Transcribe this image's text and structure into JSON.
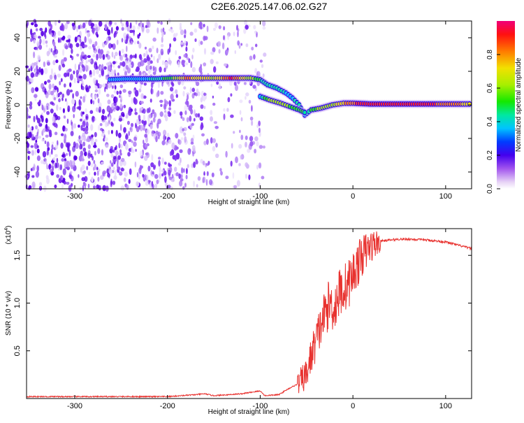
{
  "title": "C2E6.2025.147.06.02.G27",
  "chart_data": [
    {
      "type": "heatmap",
      "xlabel": "Height of straight line (km)",
      "ylabel": "Frequency (Hz)",
      "xlim": [
        -352,
        128
      ],
      "ylim": [
        -50,
        50
      ],
      "xticks": [
        -300,
        -200,
        -100,
        0,
        100
      ],
      "yticks": [
        -40,
        -20,
        0,
        20,
        40
      ],
      "colorbar": {
        "label": "Normalized spectral amplitude",
        "range": [
          0.0,
          1.0
        ],
        "ticks": [
          0.0,
          0.2,
          0.4,
          0.6,
          0.8
        ]
      },
      "noise_region": {
        "x_range": [
          -352,
          -95
        ],
        "y_range": [
          -50,
          50
        ]
      },
      "trace": [
        {
          "x": -262,
          "y": 15,
          "amp": 0.35
        },
        {
          "x": -245,
          "y": 15.5,
          "amp": 0.3
        },
        {
          "x": -230,
          "y": 15.5,
          "amp": 0.3
        },
        {
          "x": -212,
          "y": 15.5,
          "amp": 0.4
        },
        {
          "x": -195,
          "y": 16,
          "amp": 0.5
        },
        {
          "x": -180,
          "y": 16,
          "amp": 0.75
        },
        {
          "x": -150,
          "y": 16,
          "amp": 0.6
        },
        {
          "x": -130,
          "y": 16,
          "amp": 0.85
        },
        {
          "x": -110,
          "y": 16,
          "amp": 0.55
        },
        {
          "x": -100,
          "y": 15,
          "amp": 0.45
        },
        {
          "x": -92,
          "y": 12,
          "amp": 0.4
        },
        {
          "x": -82,
          "y": 10,
          "amp": 0.4
        },
        {
          "x": -72,
          "y": 7,
          "amp": 0.35
        },
        {
          "x": -65,
          "y": 4,
          "amp": 0.35
        },
        {
          "x": -58,
          "y": 0,
          "amp": 0.4
        },
        {
          "x": -52,
          "y": -6,
          "amp": 0.35
        },
        {
          "x": -45,
          "y": -3,
          "amp": 0.45
        },
        {
          "x": -35,
          "y": -2,
          "amp": 0.55
        },
        {
          "x": -22,
          "y": 0,
          "amp": 0.6
        },
        {
          "x": -10,
          "y": 1,
          "amp": 0.7
        },
        {
          "x": 0,
          "y": 1,
          "amp": 0.8
        },
        {
          "x": 20,
          "y": 0.5,
          "amp": 0.9
        },
        {
          "x": 50,
          "y": 0.5,
          "amp": 0.85
        },
        {
          "x": 80,
          "y": 0.5,
          "amp": 0.9
        },
        {
          "x": 100,
          "y": 0.5,
          "amp": 0.75
        },
        {
          "x": 128,
          "y": 0.5,
          "amp": 0.7
        }
      ],
      "secondary_trace": [
        {
          "x": -100,
          "y": 5,
          "amp": 0.35
        },
        {
          "x": -90,
          "y": 3,
          "amp": 0.55
        },
        {
          "x": -78,
          "y": 1,
          "amp": 0.6
        },
        {
          "x": -68,
          "y": -1,
          "amp": 0.5
        },
        {
          "x": -58,
          "y": -3,
          "amp": 0.5
        },
        {
          "x": -50,
          "y": -5,
          "amp": 0.4
        }
      ]
    },
    {
      "type": "line",
      "xlabel": "Height of straight line (km)",
      "ylabel": "SNR (10 * v/v)",
      "yunit_label": "(x10",
      "yunit_exp": "4",
      "yunit_close": ")",
      "xlim": [
        -352,
        128
      ],
      "ylim": [
        0,
        1.78
      ],
      "xticks": [
        -300,
        -200,
        -100,
        0,
        100
      ],
      "yticks": [
        0.5,
        1.0,
        1.5
      ],
      "ytick_labels": [
        "0.5",
        "1.0",
        "1.5"
      ],
      "color": "#e8322f",
      "x": [
        -352,
        -300,
        -250,
        -200,
        -170,
        -160,
        -150,
        -120,
        -100,
        -95,
        -80,
        -70,
        -60,
        -55,
        -50,
        -45,
        -40,
        -35,
        -30,
        -25,
        -20,
        -15,
        -10,
        -5,
        0,
        5,
        10,
        20,
        30,
        40,
        50,
        60,
        80,
        100,
        128
      ],
      "y": [
        0.02,
        0.02,
        0.02,
        0.02,
        0.04,
        0.05,
        0.03,
        0.05,
        0.08,
        0.03,
        0.04,
        0.1,
        0.15,
        0.2,
        0.25,
        0.45,
        0.6,
        0.75,
        0.9,
        1.0,
        0.95,
        1.1,
        1.15,
        1.2,
        1.3,
        1.4,
        1.5,
        1.6,
        1.65,
        1.66,
        1.67,
        1.67,
        1.66,
        1.64,
        1.57
      ]
    }
  ]
}
